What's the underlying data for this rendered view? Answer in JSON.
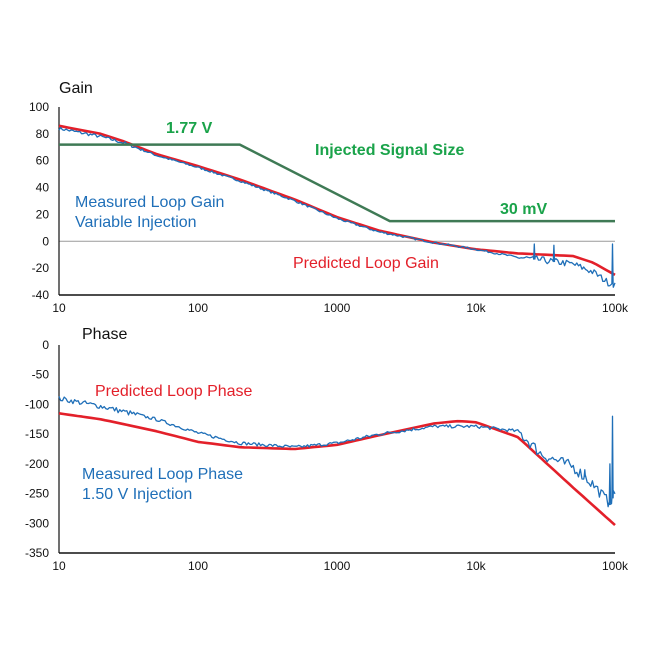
{
  "colors": {
    "measured": "#1f6fb8",
    "predicted": "#e3202a",
    "injection": "#3f7a55",
    "injection_text": "#1aa34a",
    "grid": "#9a9a9a",
    "axis": "#111111"
  },
  "chart_data": [
    {
      "type": "line",
      "title": "Gain",
      "xscale": "log",
      "xlim": [
        10,
        100000
      ],
      "ylim": [
        -40,
        100
      ],
      "grid": "horizontal at y=0",
      "x_ticks": [
        10,
        100,
        1000,
        10000,
        100000
      ],
      "x_tick_labels": [
        "10",
        "100",
        "1000",
        "10k",
        "100k"
      ],
      "y_ticks": [
        100,
        80,
        60,
        40,
        20,
        0,
        -20,
        -40
      ],
      "annotations": {
        "inj_high": "1.77 V",
        "inj_title": "Injected Signal Size",
        "inj_low": "30 mV",
        "measured_line1": "Measured Loop Gain",
        "measured_line2": "Variable Injection",
        "predicted": "Predicted Loop Gain"
      },
      "series": [
        {
          "name": "Predicted Loop Gain",
          "color": "#e3202a",
          "x": [
            10,
            20,
            30,
            50,
            100,
            200,
            500,
            1000,
            2000,
            5000,
            10000,
            20000,
            50000,
            70000,
            100000
          ],
          "y": [
            86,
            80,
            74,
            65,
            56,
            46,
            31,
            18,
            8,
            -1,
            -6,
            -9,
            -11,
            -16,
            -25
          ]
        },
        {
          "name": "Measured Loop Gain",
          "color": "#1f6fb8",
          "x": [
            10,
            20,
            30,
            50,
            100,
            200,
            500,
            1000,
            2000,
            5000,
            10000,
            20000,
            30000,
            50000,
            70000,
            90000,
            100000
          ],
          "y": [
            84,
            78,
            73,
            64,
            55,
            45,
            30,
            17,
            7,
            -1,
            -6,
            -12,
            -14,
            -17,
            -23,
            -31,
            -32
          ]
        },
        {
          "name": "Injected Signal Size",
          "color": "#3f7a55",
          "x": [
            10,
            200,
            2400,
            100000
          ],
          "y": [
            72,
            72,
            15,
            15
          ]
        }
      ]
    },
    {
      "type": "line",
      "title": "Phase",
      "xscale": "log",
      "xlim": [
        10,
        100000
      ],
      "ylim": [
        -350,
        0
      ],
      "grid": "none",
      "x_ticks": [
        10,
        100,
        1000,
        10000,
        100000
      ],
      "x_tick_labels": [
        "10",
        "100",
        "1000",
        "10k",
        "100k"
      ],
      "y_ticks": [
        0,
        -50,
        -100,
        -150,
        -200,
        -250,
        -300,
        -350
      ],
      "annotations": {
        "predicted": "Predicted Loop Phase",
        "measured_line1": "Measured Loop Phase",
        "measured_line2": "1.50 V Injection"
      },
      "series": [
        {
          "name": "Predicted Loop Phase",
          "color": "#e3202a",
          "x": [
            10,
            20,
            50,
            100,
            200,
            500,
            1000,
            2000,
            5000,
            7500,
            10000,
            20000,
            50000,
            100000
          ],
          "y": [
            -115,
            -125,
            -145,
            -163,
            -172,
            -175,
            -168,
            -152,
            -132,
            -128,
            -130,
            -155,
            -240,
            -303
          ]
        },
        {
          "name": "Measured Loop Phase",
          "color": "#1f6fb8",
          "x": [
            10,
            20,
            50,
            100,
            200,
            500,
            1000,
            2000,
            5000,
            10000,
            20000,
            30000,
            50000,
            70000,
            90000,
            100000
          ],
          "y": [
            -90,
            -103,
            -125,
            -148,
            -165,
            -172,
            -165,
            -150,
            -137,
            -137,
            -145,
            -185,
            -205,
            -235,
            -265,
            -250
          ]
        }
      ]
    }
  ]
}
